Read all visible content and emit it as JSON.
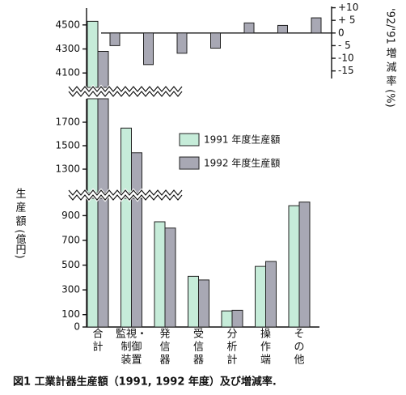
{
  "chart_data": {
    "type": "bar",
    "caption": "図1 工業計器生産額（1991, 1992 年度）及び増減率.",
    "ylabel": "生 産 額 (億円)",
    "y2label": "'92/'91 増 減 率 (%)",
    "categories": [
      [
        "合",
        "計"
      ],
      [
        "監視・",
        "制御",
        "装置"
      ],
      [
        "発",
        "信",
        "器"
      ],
      [
        "受",
        "信",
        "器"
      ],
      [
        "分",
        "析",
        "計"
      ],
      [
        "操",
        "作",
        "端"
      ],
      [
        "そ",
        "の",
        "他"
      ]
    ],
    "series": [
      {
        "name": "1991 年度生産額",
        "color": "#c6ecd9",
        "values": [
          4530,
          1650,
          850,
          410,
          130,
          490,
          980
        ]
      },
      {
        "name": "1992 年度生産額",
        "color": "#a8a8b4",
        "values": [
          4280,
          1440,
          800,
          380,
          135,
          530,
          1010
        ]
      }
    ],
    "growth": {
      "axis": "y2",
      "color": "#a8a8b4",
      "values": [
        -5,
        -12.5,
        -8,
        -6,
        4,
        3,
        6
      ]
    },
    "y_segments": [
      {
        "ylim": [
          3980,
          4640
        ],
        "yticks": [
          4100,
          4300,
          4500
        ]
      },
      {
        "ylim": [
          1100,
          1900
        ],
        "yticks": [
          1300,
          1500,
          1700
        ]
      },
      {
        "ylim": [
          0,
          1040
        ],
        "yticks": [
          0,
          100,
          300,
          500,
          700,
          900
        ]
      }
    ],
    "y2lim": [
      -18,
      10.5
    ],
    "y2ticks": [
      {
        "value": 10,
        "label": "+10"
      },
      {
        "value": 5,
        "label": "+ 5"
      },
      0,
      {
        "value": -5,
        "label": "- 5"
      },
      -10,
      -15
    ]
  }
}
